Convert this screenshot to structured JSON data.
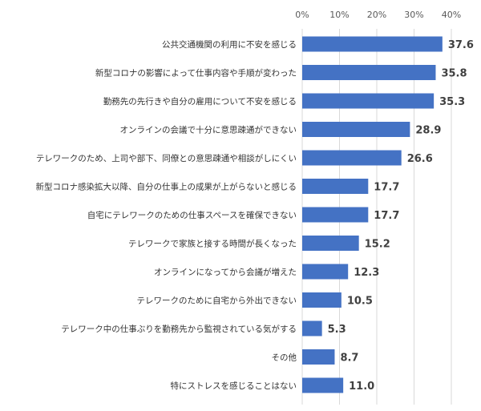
{
  "chart_data": {
    "type": "bar",
    "orientation": "horizontal",
    "title": "",
    "xlabel": "",
    "ylabel": "",
    "categories": [
      "公共交通機関の利用に不安を感じる",
      "新型コロナの影響によって仕事内容や手順が変わった",
      "勤務先の先行きや自分の雇用について不安を感じる",
      "オンラインの会議で十分に意思疎通ができない",
      "テレワークのため、上司や部下、同僚との意思疎通や相談がしにくい",
      "新型コロナ感染拡大以降、自分の仕事上の成果が上がらないと感じる",
      "自宅にテレワークのための仕事スペースを確保できない",
      "テレワークで家族と接する時間が長くなった",
      "オンラインになってから会議が増えた",
      "テレワークのために自宅から外出できない",
      "テレワーク中の仕事ぶりを勤務先から監視されている気がする",
      "その他",
      "特にストレスを感じることはない"
    ],
    "values": [
      37.6,
      35.8,
      35.3,
      28.9,
      26.6,
      17.7,
      17.7,
      15.2,
      12.3,
      10.5,
      5.3,
      8.7,
      11.0
    ],
    "value_labels": [
      "37.6",
      "35.8",
      "35.3",
      "28.9",
      "26.6",
      "17.7",
      "17.7",
      "15.2",
      "12.3",
      "10.5",
      "5.3",
      "8.7",
      "11.0"
    ],
    "xlim": [
      0,
      40
    ],
    "x_ticks": [
      0,
      10,
      20,
      30,
      40
    ],
    "x_tick_labels": [
      "0%",
      "10%",
      "20%",
      "30%",
      "40%"
    ],
    "axis_position": "top",
    "grid": true,
    "legend": false,
    "bar_color": "#4472C4",
    "grid_color": "#D9D9D9"
  }
}
